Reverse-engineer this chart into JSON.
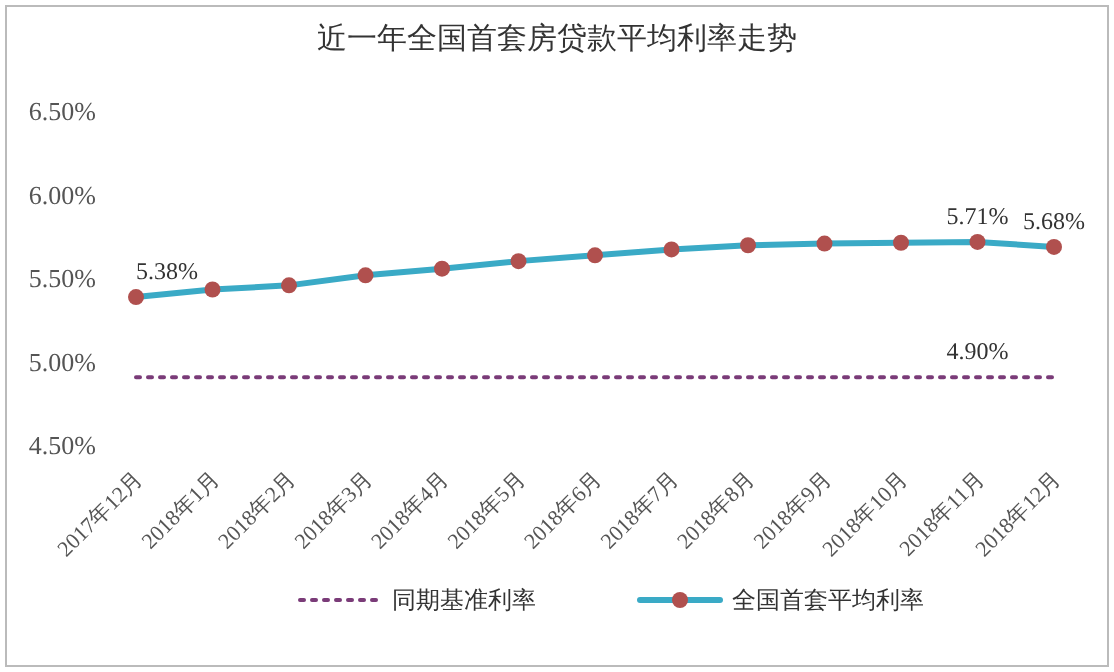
{
  "chart_data": {
    "type": "line",
    "title": "近一年全国首套房贷款平均利率走势",
    "categories": [
      "2017年12月",
      "2018年1月",
      "2018年2月",
      "2018年3月",
      "2018年4月",
      "2018年5月",
      "2018年6月",
      "2018年7月",
      "2018年8月",
      "2018年9月",
      "2018年10月",
      "2018年11月",
      "2018年12月"
    ],
    "series": [
      {
        "name": "同期基准利率",
        "color": "#7a3b78",
        "line_style": "dotted",
        "marker": "none",
        "values": [
          4.9,
          4.9,
          4.9,
          4.9,
          4.9,
          4.9,
          4.9,
          4.9,
          4.9,
          4.9,
          4.9,
          4.9,
          4.9
        ],
        "value_labels": [
          null,
          null,
          null,
          null,
          null,
          null,
          null,
          null,
          null,
          null,
          null,
          "4.90%",
          null
        ]
      },
      {
        "name": "全国首套平均利率",
        "color": "#3aaac6",
        "line_style": "solid",
        "marker": "circle",
        "colors": [
          "#b0504e",
          "#b0504e",
          "#b0504e",
          "#b0504e",
          "#b0504e",
          "#b0504e",
          "#b0504e",
          "#b0504e",
          "#b0504e",
          "#b0504e",
          "#b0504e",
          "#b0504e",
          "#b0504e"
        ],
        "values": [
          5.38,
          5.425,
          5.45,
          5.51,
          5.55,
          5.595,
          5.63,
          5.665,
          5.69,
          5.7,
          5.705,
          5.71,
          5.68
        ],
        "value_labels": [
          "5.38%",
          null,
          null,
          null,
          null,
          null,
          null,
          null,
          null,
          null,
          null,
          "5.71%",
          "5.68%"
        ]
      }
    ],
    "ylim": [
      4.5,
      6.5
    ],
    "yticks": [
      {
        "value": 4.5,
        "label": "4.50%"
      },
      {
        "value": 5,
        "label": "5.00%"
      },
      {
        "value": 5.5,
        "label": "5.50%"
      },
      {
        "value": 6,
        "label": "6.00%"
      },
      {
        "value": 6.5,
        "label": "6.50%"
      }
    ],
    "grid": false,
    "legend": "bottom"
  }
}
